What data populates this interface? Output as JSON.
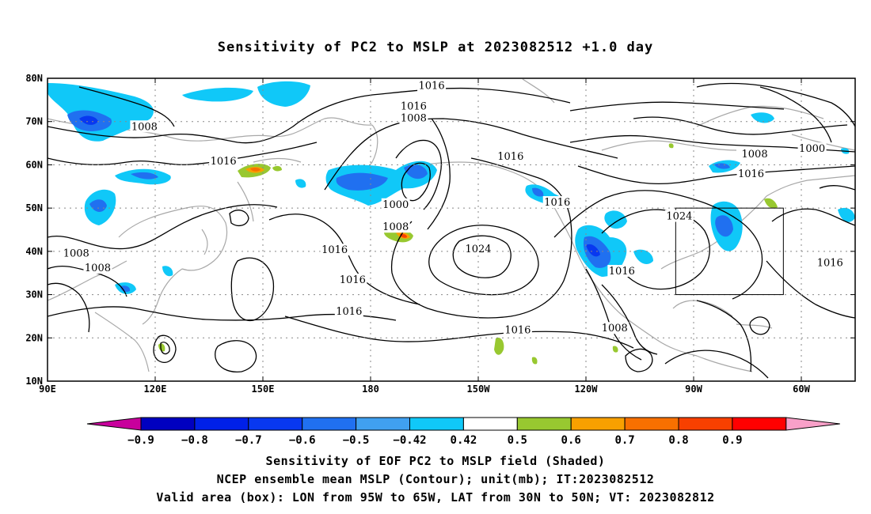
{
  "title": "Sensitivity of PC2 to MSLP at 2023082512 +1.0 day",
  "map": {
    "lon_range": [
      90,
      315
    ],
    "lat_range": [
      10,
      80
    ],
    "x_ticks": [
      {
        "lon": 90,
        "label": "90E"
      },
      {
        "lon": 120,
        "label": "120E"
      },
      {
        "lon": 150,
        "label": "150E"
      },
      {
        "lon": 180,
        "label": "180"
      },
      {
        "lon": 210,
        "label": "150W"
      },
      {
        "lon": 240,
        "label": "120W"
      },
      {
        "lon": 270,
        "label": "90W"
      },
      {
        "lon": 300,
        "label": "60W"
      }
    ],
    "y_ticks": [
      {
        "lat": 80,
        "label": "80N"
      },
      {
        "lat": 70,
        "label": "70N"
      },
      {
        "lat": 60,
        "label": "60N"
      },
      {
        "lat": 50,
        "label": "50N"
      },
      {
        "lat": 40,
        "label": "40N"
      },
      {
        "lat": 30,
        "label": "30N"
      },
      {
        "lat": 20,
        "label": "20N"
      },
      {
        "lat": 10,
        "label": "10N"
      }
    ],
    "grid": "dotted",
    "valid_box": {
      "lon1": 265,
      "lon2": 295,
      "lat1": 30,
      "lat2": 50
    },
    "contour_labels": [
      {
        "text": "1016",
        "lon": 197,
        "lat": 78.3
      },
      {
        "text": "1008",
        "lon": 117,
        "lat": 68.8
      },
      {
        "text": "1016",
        "lon": 192,
        "lat": 73.5
      },
      {
        "text": "1008",
        "lon": 192,
        "lat": 70.8
      },
      {
        "text": "1016",
        "lon": 139,
        "lat": 60.8
      },
      {
        "text": "1016",
        "lon": 219,
        "lat": 61.9
      },
      {
        "text": "1008",
        "lon": 287,
        "lat": 62.5
      },
      {
        "text": "1000",
        "lon": 303,
        "lat": 63.7
      },
      {
        "text": "1016",
        "lon": 286,
        "lat": 57.9
      },
      {
        "text": "1016",
        "lon": 232,
        "lat": 51.3
      },
      {
        "text": "1000",
        "lon": 187,
        "lat": 50.8
      },
      {
        "text": "1008",
        "lon": 187,
        "lat": 45.6
      },
      {
        "text": "1024",
        "lon": 266,
        "lat": 48.1
      },
      {
        "text": "1016",
        "lon": 170,
        "lat": 40.3
      },
      {
        "text": "1024",
        "lon": 210,
        "lat": 40.5
      },
      {
        "text": "1008",
        "lon": 98,
        "lat": 39.5
      },
      {
        "text": "1008",
        "lon": 104,
        "lat": 36.1
      },
      {
        "text": "1016",
        "lon": 250,
        "lat": 35.4
      },
      {
        "text": "1016",
        "lon": 308,
        "lat": 37.3
      },
      {
        "text": "1016",
        "lon": 175,
        "lat": 33.4
      },
      {
        "text": "1016",
        "lon": 174,
        "lat": 26.1
      },
      {
        "text": "1016",
        "lon": 221,
        "lat": 21.8
      },
      {
        "text": "1008",
        "lon": 248,
        "lat": 22.2
      }
    ]
  },
  "colorbar": {
    "labels": [
      "−0.9",
      "−0.8",
      "−0.7",
      "−0.6",
      "−0.5",
      "−0.42",
      "0.42",
      "0.5",
      "0.6",
      "0.7",
      "0.8",
      "0.9"
    ],
    "colors": [
      "#C8009C",
      "#0000C0",
      "#0020E8",
      "#0838F0",
      "#2070F0",
      "#40A0F0",
      "#10C8F8",
      "#FFFFFF",
      "#98C830",
      "#F8A000",
      "#F87000",
      "#F84000",
      "#FF0000",
      "#F8A0C8"
    ]
  },
  "caption": {
    "line1": "Sensitivity of EOF PC2 to MSLP field (Shaded)",
    "line2": "NCEP ensemble mean MSLP (Contour); unit(mb); IT:2023082512",
    "line3": "Valid area (box): LON from 95W to 65W, LAT from 30N to 50N; VT: 2023082812"
  }
}
